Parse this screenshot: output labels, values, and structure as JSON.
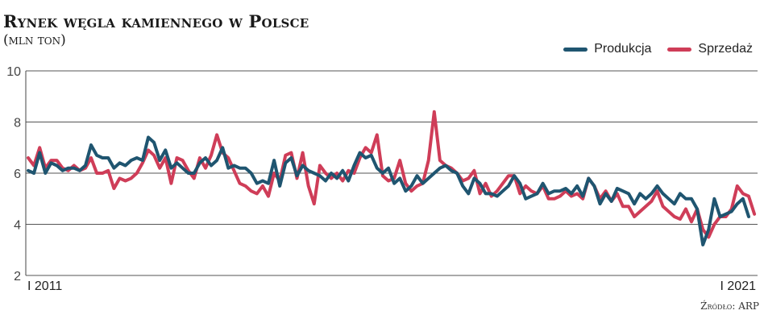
{
  "chart_data": {
    "type": "line",
    "title": "Rynek węgla kamiennego w Polsce",
    "subtitle": "(mln ton)",
    "source": "Źródło: ARP",
    "ylim": [
      2,
      10
    ],
    "yticks": [
      "2",
      "4",
      "6",
      "8",
      "10"
    ],
    "xtick_labels": [
      "I 2011",
      "I 2021"
    ],
    "legend_position": "top-right",
    "grid": true,
    "series": [
      {
        "name": "Produkcja",
        "color": "#1f5570",
        "values": [
          6.1,
          6.0,
          6.8,
          6.0,
          6.4,
          6.3,
          6.1,
          6.2,
          6.2,
          6.1,
          6.3,
          7.1,
          6.7,
          6.6,
          6.6,
          6.2,
          6.4,
          6.3,
          6.5,
          6.6,
          6.5,
          7.4,
          7.2,
          6.5,
          6.9,
          6.2,
          6.4,
          6.2,
          6.0,
          6.0,
          6.4,
          6.6,
          6.3,
          6.5,
          7.0,
          6.2,
          6.3,
          6.2,
          6.2,
          6.0,
          5.6,
          5.7,
          5.6,
          6.5,
          5.5,
          6.4,
          6.6,
          5.9,
          6.3,
          6.1,
          6.0,
          5.9,
          5.7,
          6.0,
          5.8,
          6.1,
          5.7,
          6.3,
          6.8,
          6.6,
          6.7,
          6.2,
          6.0,
          6.2,
          5.6,
          5.8,
          5.3,
          5.5,
          5.9,
          5.6,
          5.8,
          6.0,
          6.2,
          6.3,
          6.1,
          6.0,
          5.5,
          5.2,
          5.8,
          5.6,
          5.2,
          5.2,
          5.1,
          5.3,
          5.5,
          5.9,
          5.6,
          5.0,
          5.1,
          5.2,
          5.6,
          5.2,
          5.3,
          5.3,
          5.4,
          5.2,
          5.5,
          5.1,
          5.8,
          5.5,
          4.8,
          5.2,
          4.9,
          5.4,
          5.3,
          5.2,
          4.8,
          5.2,
          5.0,
          5.2,
          5.5,
          5.2,
          5.0,
          4.8,
          5.2,
          5.0,
          5.0,
          4.6,
          3.2,
          3.8,
          5.0,
          4.3,
          4.4,
          4.5,
          4.8,
          5.0,
          4.3
        ]
      },
      {
        "name": "Sprzedaż",
        "color": "#cf3d58",
        "values": [
          6.6,
          6.3,
          7.0,
          6.2,
          6.5,
          6.5,
          6.2,
          6.1,
          6.3,
          6.1,
          6.2,
          6.6,
          6.0,
          6.0,
          6.1,
          5.4,
          5.8,
          5.7,
          5.8,
          6.0,
          6.4,
          6.9,
          6.7,
          6.2,
          6.6,
          5.6,
          6.6,
          6.5,
          6.1,
          5.8,
          6.6,
          6.2,
          6.7,
          7.5,
          6.8,
          6.6,
          6.1,
          5.6,
          5.5,
          5.3,
          5.2,
          5.5,
          5.1,
          6.0,
          5.7,
          6.7,
          6.8,
          5.8,
          6.8,
          5.5,
          4.8,
          6.3,
          6.0,
          5.8,
          6.0,
          5.7,
          6.1,
          6.0,
          6.6,
          7.0,
          6.8,
          7.5,
          5.9,
          5.7,
          5.8,
          6.5,
          5.6,
          5.3,
          5.5,
          5.6,
          6.5,
          8.4,
          6.5,
          6.3,
          6.2,
          6.0,
          5.7,
          5.8,
          6.1,
          5.2,
          5.6,
          5.1,
          5.3,
          5.6,
          5.9,
          5.9,
          5.2,
          5.5,
          5.3,
          5.2,
          5.5,
          5.0,
          5.0,
          5.1,
          5.3,
          5.1,
          5.2,
          5.0,
          5.8,
          5.5,
          5.0,
          5.3,
          4.9,
          5.2,
          4.7,
          4.7,
          4.3,
          4.5,
          4.7,
          4.9,
          5.3,
          4.7,
          4.5,
          4.3,
          4.2,
          4.6,
          4.1,
          4.6,
          3.8,
          3.5,
          4.0,
          4.3,
          4.3,
          4.6,
          5.5,
          5.2,
          5.1,
          4.4
        ]
      }
    ]
  }
}
